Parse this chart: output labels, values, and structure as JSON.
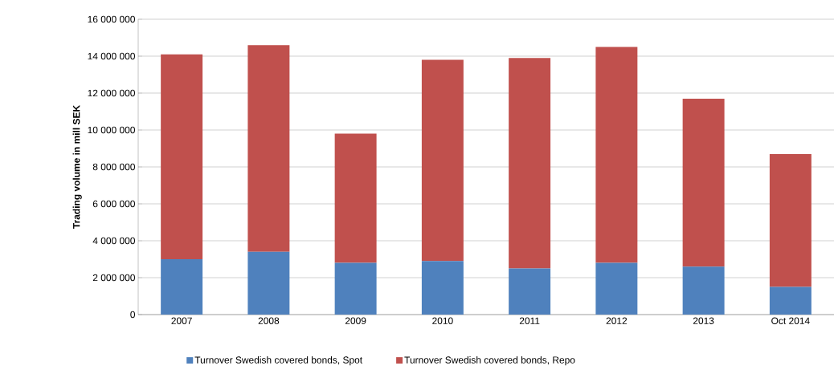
{
  "chart_data": {
    "type": "bar",
    "stacked": true,
    "ylabel": "Trading volume in mill SEK",
    "categories": [
      "2007",
      "2008",
      "2009",
      "2010",
      "2011",
      "2012",
      "2013",
      "Oct 2014"
    ],
    "series": [
      {
        "name": "Turnover Swedish covered bonds, Spot",
        "color": "#4f81bd",
        "values": [
          3000000,
          3400000,
          2800000,
          2900000,
          2500000,
          2800000,
          2600000,
          1500000
        ]
      },
      {
        "name": "Turnover Swedish covered bonds, Repo",
        "color": "#c0504d",
        "values": [
          11100000,
          11200000,
          7000000,
          10900000,
          11400000,
          11700000,
          9100000,
          7200000
        ]
      }
    ],
    "ylim": [
      0,
      16000000
    ],
    "yticks": [
      {
        "value": 0,
        "label": "0"
      },
      {
        "value": 2000000,
        "label": "2 000 000"
      },
      {
        "value": 4000000,
        "label": "4 000 000"
      },
      {
        "value": 6000000,
        "label": "6 000 000"
      },
      {
        "value": 8000000,
        "label": "8 000 000"
      },
      {
        "value": 10000000,
        "label": "10 000 000"
      },
      {
        "value": 12000000,
        "label": "12 000 000"
      },
      {
        "value": 14000000,
        "label": "14 000 000"
      },
      {
        "value": 16000000,
        "label": "16 000 000"
      }
    ],
    "grid": "y",
    "legend": "bottom"
  }
}
